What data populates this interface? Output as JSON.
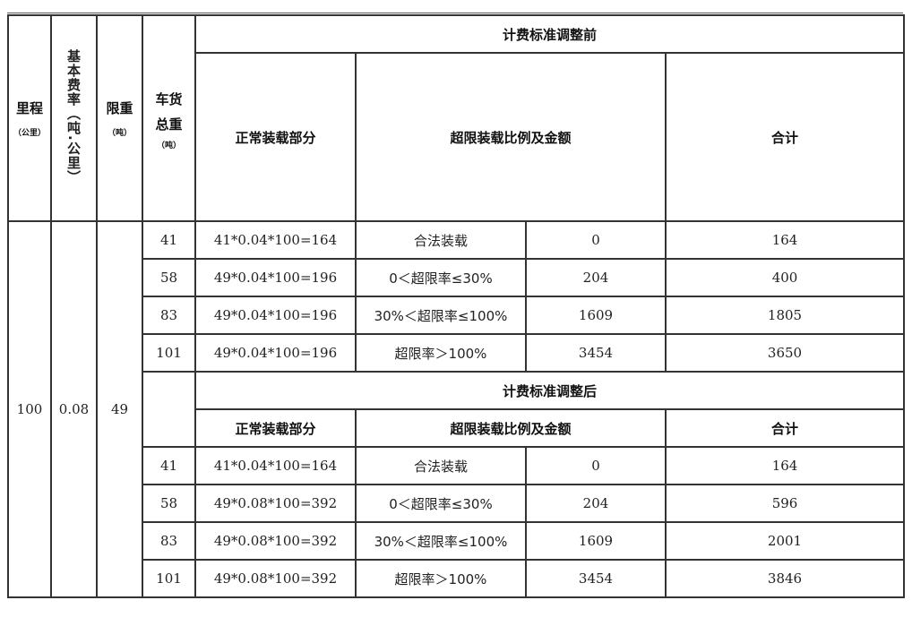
{
  "headers": {
    "mileage": "里程",
    "mileage_unit": "（公里）",
    "base_rate": "基本费率（吨.公里）",
    "weight_limit": "限重",
    "weight_limit_unit": "（吨）",
    "gross_weight": "车货总重",
    "gross_weight_unit": "（吨）",
    "before_title": "计费标准调整前",
    "after_title": "计费标准调整后",
    "normal_part": "正常装载部分",
    "overload_part": "超限装载比例及金额",
    "total": "合计"
  },
  "shared": {
    "mileage": "100",
    "base_rate": "0.08",
    "weight_limit": "49"
  },
  "before_rows": [
    {
      "weight": "41",
      "normal": "41*0.04*100=164",
      "category": "合法装载",
      "amount": "0",
      "total": "164"
    },
    {
      "weight": "58",
      "normal": "49*0.04*100=196",
      "category": "0＜超限率≤30%",
      "amount": "204",
      "total": "400"
    },
    {
      "weight": "83",
      "normal": "49*0.04*100=196",
      "category": "30%＜超限率≤100%",
      "amount": "1609",
      "total": "1805"
    },
    {
      "weight": "101",
      "normal": "49*0.04*100=196",
      "category": "超限率＞100%",
      "amount": "3454",
      "total": "3650"
    }
  ],
  "after_rows": [
    {
      "weight": "41",
      "normal": "41*0.04*100=164",
      "category": "合法装载",
      "amount": "0",
      "total": "164"
    },
    {
      "weight": "58",
      "normal": "49*0.08*100=392",
      "category": "0＜超限率≤30%",
      "amount": "204",
      "total": "596"
    },
    {
      "weight": "83",
      "normal": "49*0.08*100=392",
      "category": "30%＜超限率≤100%",
      "amount": "1609",
      "total": "2001"
    },
    {
      "weight": "101",
      "normal": "49*0.08*100=392",
      "category": "超限率＞100%",
      "amount": "3454",
      "total": "3846"
    }
  ]
}
